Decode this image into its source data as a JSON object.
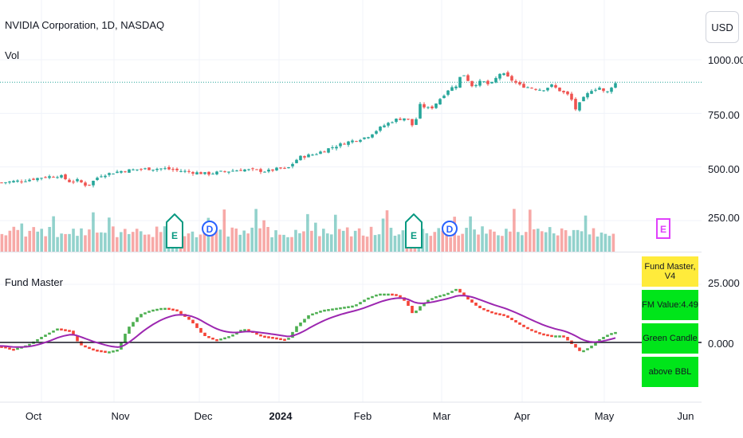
{
  "header": {
    "symbol_title": "NVIDIA Corporation, 1D, NASDAQ",
    "volume_label": "Vol",
    "currency_button": "USD"
  },
  "price_axis": {
    "ticks": [
      "1000.00",
      "750.00",
      "500.00",
      "250.00"
    ]
  },
  "indicator": {
    "title": "Fund Master",
    "ticks": [
      "25.000",
      "0.000"
    ],
    "table": [
      "Fund Master, V4",
      "FM Value:4.49",
      "Green Candle",
      "above BBL"
    ],
    "table_colors": [
      "#ffeb3b",
      "#00e51a",
      "#00e51a",
      "#00e51a"
    ]
  },
  "time_axis": {
    "labels": [
      "Oct",
      "Nov",
      "Dec",
      "2024",
      "Feb",
      "Mar",
      "Apr",
      "May",
      "Jun"
    ]
  },
  "events": {
    "earnings_glyph": "E",
    "dividend_glyph": "D"
  },
  "colors": {
    "up": "#26a69a",
    "down": "#ef5350",
    "fm_up": "#4caf50",
    "fm_down": "#f44336",
    "fm_signal": "#9c27b0",
    "price_line": "#26a69a"
  },
  "chart_data": [
    {
      "type": "candlestick",
      "title": "NVIDIA Corporation, 1D, NASDAQ",
      "ylim": [
        120,
        1030
      ],
      "y_ticks": [
        250,
        500,
        750,
        1000
      ],
      "x_labels": [
        "Oct",
        "Nov",
        "Dec",
        "2024",
        "Feb",
        "Mar",
        "Apr",
        "May",
        "Jun"
      ],
      "close_key_points": [
        {
          "x": 0,
          "y": 427
        },
        {
          "x": 30,
          "y": 437
        },
        {
          "x": 55,
          "y": 453
        },
        {
          "x": 75,
          "y": 460
        },
        {
          "x": 88,
          "y": 430
        },
        {
          "x": 98,
          "y": 438
        },
        {
          "x": 105,
          "y": 420
        },
        {
          "x": 110,
          "y": 412
        },
        {
          "x": 125,
          "y": 460
        },
        {
          "x": 150,
          "y": 480
        },
        {
          "x": 175,
          "y": 490
        },
        {
          "x": 205,
          "y": 493
        },
        {
          "x": 230,
          "y": 480
        },
        {
          "x": 260,
          "y": 468
        },
        {
          "x": 280,
          "y": 478
        },
        {
          "x": 305,
          "y": 488
        },
        {
          "x": 335,
          "y": 480
        },
        {
          "x": 350,
          "y": 493
        },
        {
          "x": 360,
          "y": 490
        },
        {
          "x": 375,
          "y": 545
        },
        {
          "x": 395,
          "y": 560
        },
        {
          "x": 415,
          "y": 590
        },
        {
          "x": 435,
          "y": 615
        },
        {
          "x": 460,
          "y": 640
        },
        {
          "x": 480,
          "y": 690
        },
        {
          "x": 495,
          "y": 720
        },
        {
          "x": 510,
          "y": 730
        },
        {
          "x": 520,
          "y": 680
        },
        {
          "x": 525,
          "y": 790
        },
        {
          "x": 540,
          "y": 770
        },
        {
          "x": 550,
          "y": 810
        },
        {
          "x": 562,
          "y": 860
        },
        {
          "x": 572,
          "y": 880
        },
        {
          "x": 580,
          "y": 940
        },
        {
          "x": 592,
          "y": 880
        },
        {
          "x": 605,
          "y": 900
        },
        {
          "x": 615,
          "y": 880
        },
        {
          "x": 628,
          "y": 940
        },
        {
          "x": 640,
          "y": 910
        },
        {
          "x": 652,
          "y": 880
        },
        {
          "x": 665,
          "y": 870
        },
        {
          "x": 680,
          "y": 860
        },
        {
          "x": 692,
          "y": 880
        },
        {
          "x": 705,
          "y": 850
        },
        {
          "x": 715,
          "y": 830
        },
        {
          "x": 722,
          "y": 770
        },
        {
          "x": 732,
          "y": 820
        },
        {
          "x": 742,
          "y": 860
        },
        {
          "x": 752,
          "y": 870
        },
        {
          "x": 760,
          "y": 840
        },
        {
          "x": 770,
          "y": 890
        }
      ],
      "last_price_line": 895,
      "volume_bars": 155
    },
    {
      "type": "line",
      "title": "Fund Master",
      "ylim": [
        -12,
        36
      ],
      "y_ticks": [
        0,
        25
      ],
      "fm_key_points": [
        {
          "x": 0,
          "y": -1.5
        },
        {
          "x": 15,
          "y": -3
        },
        {
          "x": 35,
          "y": -1
        },
        {
          "x": 55,
          "y": 3
        },
        {
          "x": 72,
          "y": 6
        },
        {
          "x": 88,
          "y": 5
        },
        {
          "x": 100,
          "y": -1
        },
        {
          "x": 115,
          "y": -3
        },
        {
          "x": 135,
          "y": -4
        },
        {
          "x": 148,
          "y": -3
        },
        {
          "x": 160,
          "y": 6
        },
        {
          "x": 175,
          "y": 12
        },
        {
          "x": 190,
          "y": 14
        },
        {
          "x": 205,
          "y": 15
        },
        {
          "x": 220,
          "y": 14
        },
        {
          "x": 240,
          "y": 9
        },
        {
          "x": 255,
          "y": 3
        },
        {
          "x": 270,
          "y": 1
        },
        {
          "x": 290,
          "y": 3
        },
        {
          "x": 305,
          "y": 6
        },
        {
          "x": 325,
          "y": 3
        },
        {
          "x": 345,
          "y": 2
        },
        {
          "x": 360,
          "y": 1
        },
        {
          "x": 372,
          "y": 7
        },
        {
          "x": 388,
          "y": 12
        },
        {
          "x": 405,
          "y": 14
        },
        {
          "x": 425,
          "y": 15
        },
        {
          "x": 445,
          "y": 16
        },
        {
          "x": 460,
          "y": 19
        },
        {
          "x": 475,
          "y": 21
        },
        {
          "x": 490,
          "y": 21
        },
        {
          "x": 500,
          "y": 20
        },
        {
          "x": 510,
          "y": 17
        },
        {
          "x": 518,
          "y": 12
        },
        {
          "x": 525,
          "y": 15
        },
        {
          "x": 535,
          "y": 18
        },
        {
          "x": 548,
          "y": 20
        },
        {
          "x": 560,
          "y": 21
        },
        {
          "x": 572,
          "y": 23
        },
        {
          "x": 585,
          "y": 19
        },
        {
          "x": 600,
          "y": 15
        },
        {
          "x": 615,
          "y": 13
        },
        {
          "x": 630,
          "y": 12
        },
        {
          "x": 645,
          "y": 9
        },
        {
          "x": 660,
          "y": 6
        },
        {
          "x": 675,
          "y": 4
        },
        {
          "x": 690,
          "y": 3
        },
        {
          "x": 705,
          "y": 3
        },
        {
          "x": 718,
          "y": -1
        },
        {
          "x": 728,
          "y": -4
        },
        {
          "x": 740,
          "y": -2
        },
        {
          "x": 750,
          "y": 1
        },
        {
          "x": 760,
          "y": 3
        },
        {
          "x": 770,
          "y": 4.49
        }
      ]
    }
  ]
}
